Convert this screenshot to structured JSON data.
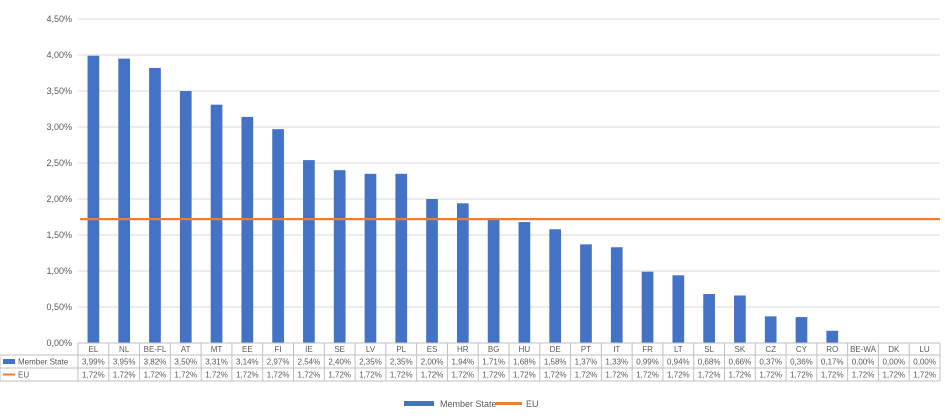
{
  "chart_data": {
    "type": "bar",
    "categories": [
      "EL",
      "NL",
      "BE-FL",
      "AT",
      "MT",
      "EE",
      "FI",
      "IE",
      "SE",
      "LV",
      "PL",
      "ES",
      "HR",
      "BG",
      "HU",
      "DE",
      "PT",
      "IT",
      "FR",
      "LT",
      "SL",
      "SK",
      "CZ",
      "CY",
      "RO",
      "BE-WA",
      "DK",
      "LU"
    ],
    "series": [
      {
        "name": "Member State",
        "kind": "bar",
        "color": "#4472c4",
        "values": [
          3.99,
          3.95,
          3.82,
          3.5,
          3.31,
          3.14,
          2.97,
          2.54,
          2.4,
          2.35,
          2.35,
          2.0,
          1.94,
          1.71,
          1.68,
          1.58,
          1.37,
          1.33,
          0.99,
          0.94,
          0.68,
          0.66,
          0.37,
          0.36,
          0.17,
          0.0,
          0.0,
          0.0
        ],
        "value_labels": [
          "3,99%",
          "3,95%",
          "3,82%",
          "3,50%",
          "3,31%",
          "3,14%",
          "2,97%",
          "2,54%",
          "2,40%",
          "2,35%",
          "2,35%",
          "2,00%",
          "1,94%",
          "1,71%",
          "1,68%",
          "1,58%",
          "1,37%",
          "1,33%",
          "0,99%",
          "0,94%",
          "0,68%",
          "0,66%",
          "0,37%",
          "0,36%",
          "0,17%",
          "0,00%",
          "0,00%",
          "0,00%"
        ]
      },
      {
        "name": "EU",
        "kind": "line",
        "color": "#ed7d31",
        "values": [
          1.72,
          1.72,
          1.72,
          1.72,
          1.72,
          1.72,
          1.72,
          1.72,
          1.72,
          1.72,
          1.72,
          1.72,
          1.72,
          1.72,
          1.72,
          1.72,
          1.72,
          1.72,
          1.72,
          1.72,
          1.72,
          1.72,
          1.72,
          1.72,
          1.72,
          1.72,
          1.72,
          1.72
        ],
        "value_labels": [
          "1,72%",
          "1,72%",
          "1,72%",
          "1,72%",
          "1,72%",
          "1,72%",
          "1,72%",
          "1,72%",
          "1,72%",
          "1,72%",
          "1,72%",
          "1,72%",
          "1,72%",
          "1,72%",
          "1,72%",
          "1,72%",
          "1,72%",
          "1,72%",
          "1,72%",
          "1,72%",
          "1,72%",
          "1,72%",
          "1,72%",
          "1,72%",
          "1,72%",
          "1,72%",
          "1,72%",
          "1,72%"
        ]
      }
    ],
    "y_ticks": [
      "0,00%",
      "0,50%",
      "1,00%",
      "1,50%",
      "2,00%",
      "2,50%",
      "3,00%",
      "3,50%",
      "4,00%",
      "4,50%"
    ],
    "y_tick_values": [
      0,
      0.5,
      1,
      1.5,
      2,
      2.5,
      3,
      3.5,
      4,
      4.5
    ],
    "ylim": [
      0,
      4.5
    ],
    "grid": true,
    "data_table": true,
    "legend_position": "bottom",
    "legend": [
      "Member State",
      "EU"
    ]
  }
}
